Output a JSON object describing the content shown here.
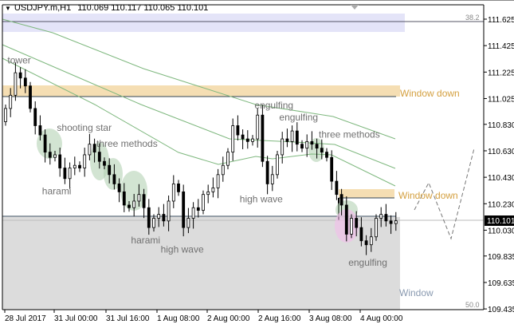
{
  "header": {
    "symbol": "USDJPY.m,H1",
    "ohlc_text": "110.069 110.117 110.065 110.101"
  },
  "colors": {
    "window_down": "#f5deb3",
    "window_label": "#d4a040",
    "fib_band": "#e4e4f8",
    "gray_zone": "#dcdcdc",
    "ma": "#7fb87f",
    "pattern_green": "#b4d2b4",
    "pattern_pink": "#f0c0e8"
  },
  "levels": {
    "fib_top": "38.2",
    "fib_bottom": "50.0",
    "window_down_1": "Window down",
    "window_down_2": "Window down",
    "window": "Window",
    "current_price": "110.101"
  },
  "annotations": [
    {
      "text": "tower",
      "price": 111.29,
      "i": 2
    },
    {
      "text": "shooting star",
      "price": 110.78,
      "i": 12
    },
    {
      "text": "three methods",
      "price": 110.66,
      "i": 20
    },
    {
      "text": "harami",
      "price": 110.3,
      "i": 9
    },
    {
      "text": "harami",
      "price": 109.93,
      "i": 27
    },
    {
      "text": "high wave",
      "price": 109.86,
      "i": 33
    },
    {
      "text": "engulfing",
      "price": 110.95,
      "i": 52
    },
    {
      "text": "engulfing",
      "price": 110.86,
      "i": 57
    },
    {
      "text": "three methods",
      "price": 110.73,
      "i": 65
    },
    {
      "text": "high wave",
      "price": 110.24,
      "i": 49
    },
    {
      "text": "engulfing",
      "price": 109.76,
      "i": 71
    }
  ],
  "chart_data": {
    "type": "candlestick",
    "symbol": "USDJPY.m",
    "timeframe": "H1",
    "ylim": [
      109.435,
      111.7
    ],
    "yticks": [
      "111.625",
      "111.425",
      "111.225",
      "111.025",
      "110.830",
      "110.630",
      "110.430",
      "110.230",
      "110.030",
      "109.835",
      "109.635",
      "109.435"
    ],
    "xticks": [
      "28 Jul 2017",
      "31 Jul 00:00",
      "31 Jul 16:00",
      "1 Aug 08:00",
      "2 Aug 00:00",
      "2 Aug 16:00",
      "3 Aug 08:00",
      "4 Aug 00:00"
    ],
    "close": [
      110.95,
      111.05,
      111.22,
      111.18,
      111.12,
      110.95,
      110.82,
      110.75,
      110.62,
      110.58,
      110.6,
      110.5,
      110.42,
      110.5,
      110.52,
      110.5,
      110.6,
      110.68,
      110.62,
      110.55,
      110.52,
      110.45,
      110.38,
      110.32,
      110.22,
      110.2,
      110.25,
      110.3,
      110.2,
      110.05,
      110.12,
      110.15,
      110.1,
      110.25,
      110.38,
      110.32,
      110.05,
      110.12,
      110.2,
      110.18,
      110.3,
      110.32,
      110.35,
      110.45,
      110.52,
      110.62,
      110.82,
      110.75,
      110.72,
      110.7,
      110.72,
      110.9,
      110.55,
      110.38,
      110.45,
      110.6,
      110.72,
      110.7,
      110.78,
      110.68,
      110.65,
      110.7,
      110.68,
      110.65,
      110.62,
      110.58,
      110.4,
      110.3,
      110.22,
      110.0,
      110.12,
      110.05,
      109.95,
      109.92,
      109.98,
      110.12,
      110.15,
      110.1,
      110.08,
      110.101
    ],
    "zones": {
      "fib_band": [
        111.49,
        111.63
      ],
      "window_down_1": [
        111.025,
        111.11
      ],
      "window_down_2": [
        110.255,
        110.325
      ],
      "gray_window": [
        109.435,
        110.13
      ]
    },
    "current_price": 110.101
  }
}
